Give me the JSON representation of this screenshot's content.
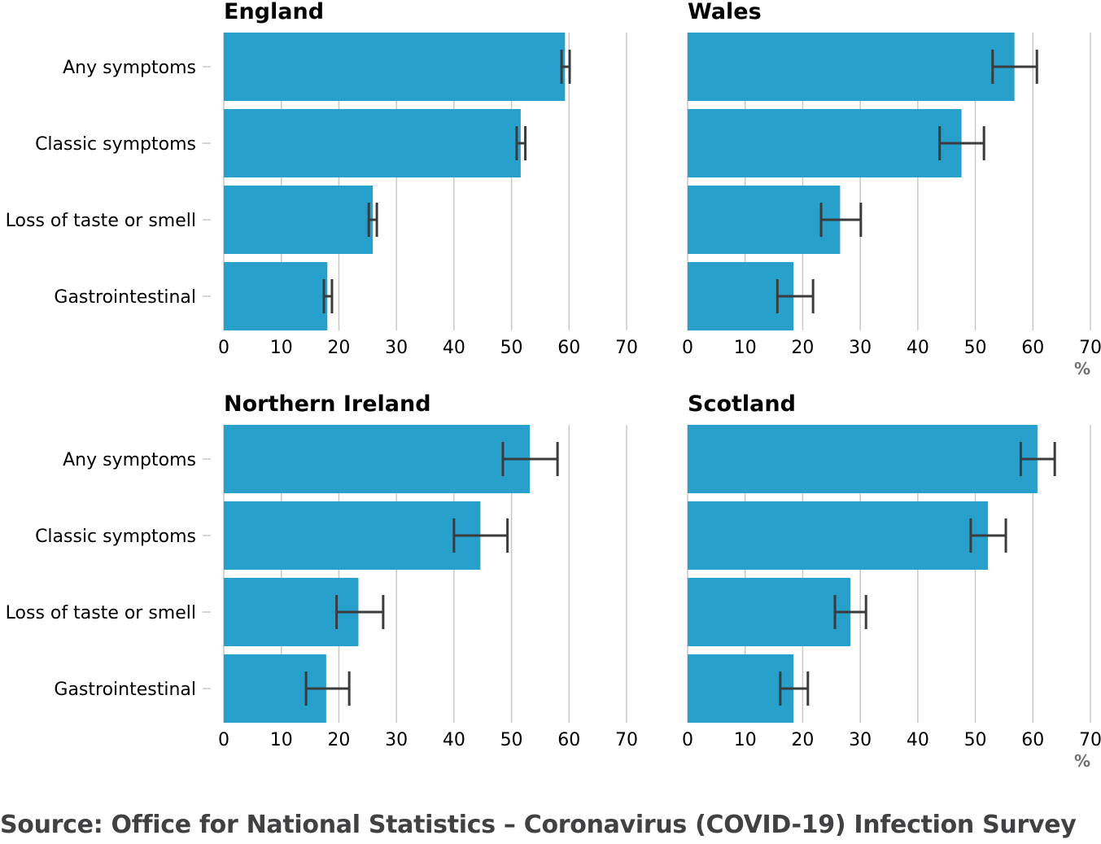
{
  "source": "Source: Office for National Statistics – Coronavirus (COVID-19) Infection Survey",
  "colors": {
    "bar": "#27a0cc",
    "error_bar": "#3b3b3b",
    "grid": "#c8c8c8",
    "unit": "#707070"
  },
  "chart_data": [
    {
      "type": "bar",
      "title": "England",
      "orientation": "horizontal",
      "categories": [
        "Any symptoms",
        "Classic symptoms",
        "Loss of taste or smell",
        "Gastrointestinal"
      ],
      "values": [
        59.3,
        51.6,
        25.9,
        18.0
      ],
      "ci_lower": [
        58.7,
        50.9,
        25.2,
        17.4
      ],
      "ci_upper": [
        60.1,
        52.4,
        26.6,
        18.8
      ],
      "xlim": [
        0,
        70
      ],
      "xticks": [
        "0",
        "10",
        "20",
        "30",
        "40",
        "50",
        "60",
        "70"
      ],
      "xlabel": "",
      "grid": true
    },
    {
      "type": "bar",
      "title": "Wales",
      "orientation": "horizontal",
      "categories": [
        "Any symptoms",
        "Classic symptoms",
        "Loss of taste or smell",
        "Gastrointestinal"
      ],
      "values": [
        56.8,
        47.6,
        26.5,
        18.4
      ],
      "ci_lower": [
        53.0,
        43.8,
        23.2,
        15.6
      ],
      "ci_upper": [
        60.7,
        51.5,
        30.1,
        21.8
      ],
      "xlim": [
        0,
        70
      ],
      "xticks": [
        "0",
        "10",
        "20",
        "30",
        "40",
        "50",
        "60",
        "70"
      ],
      "xlabel": "%",
      "grid": true
    },
    {
      "type": "bar",
      "title": "Northern Ireland",
      "orientation": "horizontal",
      "categories": [
        "Any symptoms",
        "Classic symptoms",
        "Loss of taste or smell",
        "Gastrointestinal"
      ],
      "values": [
        53.2,
        44.6,
        23.4,
        17.8
      ],
      "ci_lower": [
        48.5,
        40.0,
        19.6,
        14.3
      ],
      "ci_upper": [
        58.0,
        49.3,
        27.7,
        21.8
      ],
      "xlim": [
        0,
        70
      ],
      "xticks": [
        "0",
        "10",
        "20",
        "30",
        "40",
        "50",
        "60",
        "70"
      ],
      "xlabel": "",
      "grid": true
    },
    {
      "type": "bar",
      "title": "Scotland",
      "orientation": "horizontal",
      "categories": [
        "Any symptoms",
        "Classic symptoms",
        "Loss of taste or smell",
        "Gastrointestinal"
      ],
      "values": [
        60.8,
        52.2,
        28.3,
        18.4
      ],
      "ci_lower": [
        57.9,
        49.2,
        25.6,
        16.1
      ],
      "ci_upper": [
        63.8,
        55.3,
        31.0,
        20.9
      ],
      "xlim": [
        0,
        70
      ],
      "xticks": [
        "0",
        "10",
        "20",
        "30",
        "40",
        "50",
        "60",
        "70"
      ],
      "xlabel": "%",
      "grid": true
    }
  ]
}
